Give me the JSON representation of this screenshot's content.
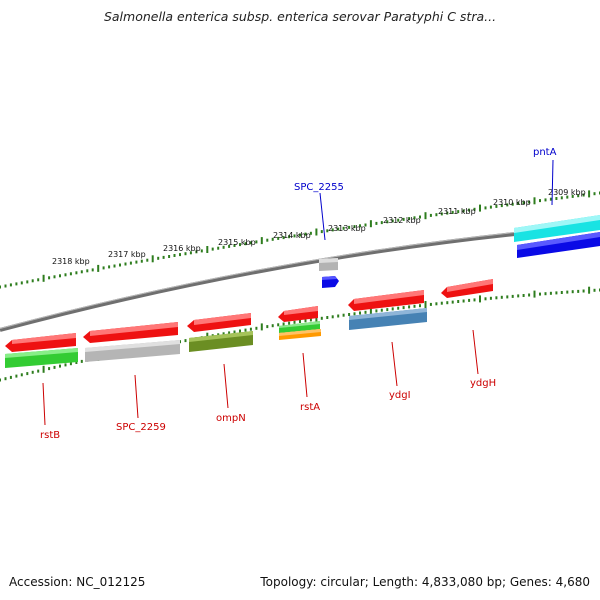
{
  "title": "Salmonella enterica subsp. enterica serovar Paratyphi C stra...",
  "footer": {
    "accession": "Accession: NC_012125",
    "summary": "Topology: circular; Length: 4,833,080 bp; Genes: 4,680"
  },
  "ruler": {
    "tick_labels": [
      "2318 kbp",
      "2317 kbp",
      "2316 kbp",
      "2315 kbp",
      "2314 kbp",
      "2313 kbp",
      "2312 kbp",
      "2311 kbp",
      "2310 kbp",
      "2309 kbp"
    ],
    "tick_color": "#2e7d1e"
  },
  "backbone_color": "#7d7d7d",
  "genes": [
    {
      "id": "pntA",
      "label": "pntA",
      "label_color": "#0000cc",
      "color": "#0a0ae6",
      "strand": "forward"
    },
    {
      "id": "spc2255",
      "label": "SPC_2255",
      "label_color": "#0000cc",
      "color": "#0a0ae6",
      "strand": "forward"
    },
    {
      "id": "rstB",
      "label": "rstB",
      "label_color": "#cc0000",
      "color": "#ee1111",
      "strand": "reverse"
    },
    {
      "id": "spc2259",
      "label": "SPC_2259",
      "label_color": "#cc0000",
      "color": "#ee1111",
      "strand": "reverse"
    },
    {
      "id": "ompN",
      "label": "ompN",
      "label_color": "#cc0000",
      "color": "#ee1111",
      "strand": "reverse"
    },
    {
      "id": "rstA",
      "label": "rstA",
      "label_color": "#cc0000",
      "color": "#ee1111",
      "strand": "reverse"
    },
    {
      "id": "ydgI",
      "label": "ydgI",
      "label_color": "#cc0000",
      "color": "#ee1111",
      "strand": "reverse"
    },
    {
      "id": "ydgH",
      "label": "ydgH",
      "label_color": "#cc0000",
      "color": "#ee1111",
      "strand": "reverse"
    }
  ],
  "feature_colors": {
    "red": "#ee1111",
    "blue": "#0a0ae6",
    "cyan": "#19e3e3",
    "green": "#33cc33",
    "gray": "#b5b5b5",
    "olive": "#6b8e23",
    "orange": "#ff9900",
    "steel": "#4682b4"
  }
}
